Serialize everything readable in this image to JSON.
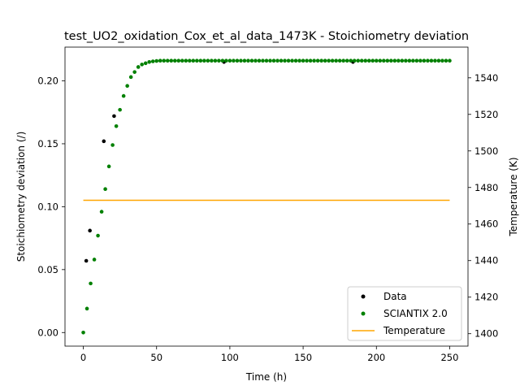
{
  "chart_data": {
    "type": "scatter",
    "title": "test_UO2_oxidation_Cox_et_al_data_1473K - Stoichiometry deviation",
    "xlabel": "Time (h)",
    "ylabel": "Stoichiometry deviation (/)",
    "y2label": "Temperature (K)",
    "xlim": [
      -12.5,
      262.5
    ],
    "ylim": [
      -0.0108,
      0.2268
    ],
    "y2lim": [
      1393.2,
      1556.8
    ],
    "xticks": [
      0,
      50,
      100,
      150,
      200,
      250
    ],
    "xtick_labels": [
      "0",
      "50",
      "100",
      "150",
      "200",
      "250"
    ],
    "yticks": [
      0.0,
      0.05,
      0.1,
      0.15,
      0.2
    ],
    "ytick_labels": [
      "0.00",
      "0.05",
      "0.10",
      "0.15",
      "0.20"
    ],
    "y2ticks": [
      1400,
      1420,
      1440,
      1460,
      1480,
      1500,
      1520,
      1540
    ],
    "y2tick_labels": [
      "1400",
      "1420",
      "1440",
      "1460",
      "1480",
      "1500",
      "1520",
      "1540"
    ],
    "grid": false,
    "legend_position": "bottom-right",
    "series": [
      {
        "name": "Data",
        "axis": "left",
        "style": "points",
        "color": "#000000",
        "x": [
          2,
          4.5,
          14,
          21,
          96,
          184
        ],
        "y": [
          0.057,
          0.081,
          0.152,
          0.172,
          0.215,
          0.215
        ]
      },
      {
        "name": "SCIANTIX 2.0",
        "axis": "left",
        "style": "points",
        "color": "#008000",
        "x": [
          0,
          2.5,
          5,
          7.5,
          10,
          12.5,
          15,
          17.5,
          20,
          22.5,
          25,
          27.5,
          30,
          32.5,
          35,
          37.5,
          40,
          42.5,
          45,
          47.5,
          50,
          52.5,
          55,
          57.5,
          60,
          62.5,
          65,
          67.5,
          70,
          72.5,
          75,
          77.5,
          80,
          82.5,
          85,
          87.5,
          90,
          92.5,
          95,
          97.5,
          100,
          102.5,
          105,
          107.5,
          110,
          112.5,
          115,
          117.5,
          120,
          122.5,
          125,
          127.5,
          130,
          132.5,
          135,
          137.5,
          140,
          142.5,
          145,
          147.5,
          150,
          152.5,
          155,
          157.5,
          160,
          162.5,
          165,
          167.5,
          170,
          172.5,
          175,
          177.5,
          180,
          182.5,
          185,
          187.5,
          190,
          192.5,
          195,
          197.5,
          200,
          202.5,
          205,
          207.5,
          210,
          212.5,
          215,
          217.5,
          220,
          222.5,
          225,
          227.5,
          230,
          232.5,
          235,
          237.5,
          240,
          242.5,
          245,
          247.5,
          250
        ],
        "y": [
          0.0,
          0.019,
          0.039,
          0.058,
          0.077,
          0.096,
          0.114,
          0.132,
          0.149,
          0.164,
          0.177,
          0.188,
          0.196,
          0.203,
          0.207,
          0.211,
          0.213,
          0.214,
          0.215,
          0.2155,
          0.2158,
          0.216,
          0.216,
          0.216,
          0.216,
          0.216,
          0.216,
          0.216,
          0.216,
          0.216,
          0.216,
          0.216,
          0.216,
          0.216,
          0.216,
          0.216,
          0.216,
          0.216,
          0.216,
          0.216,
          0.216,
          0.216,
          0.216,
          0.216,
          0.216,
          0.216,
          0.216,
          0.216,
          0.216,
          0.216,
          0.216,
          0.216,
          0.216,
          0.216,
          0.216,
          0.216,
          0.216,
          0.216,
          0.216,
          0.216,
          0.216,
          0.216,
          0.216,
          0.216,
          0.216,
          0.216,
          0.216,
          0.216,
          0.216,
          0.216,
          0.216,
          0.216,
          0.216,
          0.216,
          0.216,
          0.216,
          0.216,
          0.216,
          0.216,
          0.216,
          0.216,
          0.216,
          0.216,
          0.216,
          0.216,
          0.216,
          0.216,
          0.216,
          0.216,
          0.216,
          0.216,
          0.216,
          0.216,
          0.216,
          0.216,
          0.216,
          0.216,
          0.216,
          0.216,
          0.216,
          0.216
        ]
      },
      {
        "name": "Temperature",
        "axis": "right",
        "style": "line",
        "color": "#FFA500",
        "x": [
          0,
          250
        ],
        "y": [
          1473,
          1473
        ]
      }
    ]
  }
}
